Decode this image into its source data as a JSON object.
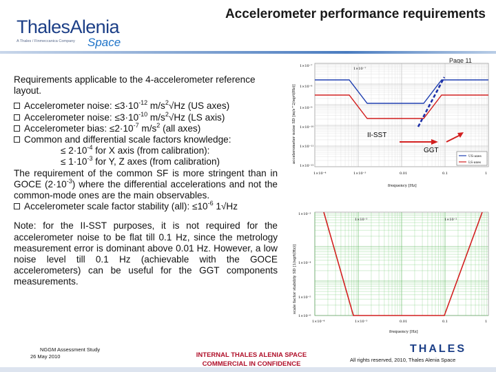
{
  "header": {
    "logo_brand": "ThalesAlenia",
    "logo_tagline": "A Thales / Finmeccanica Company",
    "logo_space": "Space",
    "title": "Accelerometer performance requirements",
    "page": "Page 11"
  },
  "body": {
    "intro": "Requirements applicable to the 4-accelerometer reference layout.",
    "b1_pre": "Accelerometer noise: ≤3·10",
    "b1_exp": "-12",
    "b1_mid": " m/s",
    "b1_exp2": "2",
    "b1_post": "√Hz (US axes)",
    "b2_pre": "Accelerometer noise: ≤3·10",
    "b2_exp": "-10",
    "b2_mid": " m/s",
    "b2_exp2": "2",
    "b2_post": "√Hz (LS axis)",
    "b3_pre": "Accelerometer bias: ≤2·10",
    "b3_exp": "-7",
    "b3_mid": " m/s",
    "b3_exp2": "2",
    "b3_post": "  (all axes)",
    "b4": "Common and differential scale factors knowledge:",
    "sub1_pre": "≤ 2·10",
    "sub1_exp": "-4",
    "sub1_post": " for X axis (from calibration):",
    "sub2_pre": "≤ 1·10",
    "sub2_exp": "-3",
    "sub2_post": " for Y, Z axes (from calibration)",
    "para_pre": "The requirement of the common SF is more stringent than in GOCE (2·10",
    "para_exp": "-3",
    "para_post": ") where the differential accelerations and not the common-mode ones are the main observables.",
    "b5_pre": "Accelerometer scale factor stability (all): ≤10",
    "b5_exp": "-6",
    "b5_post": " 1√Hz",
    "note": "Note: for the II-SST purposes, it is not required for the accelerometer noise to be flat till 0.1 Hz, since the metrology measurement error is dominant above 0.01 Hz. However, a low noise level till 0.1 Hz (achievable with the GOCE accelerometers) can be useful for the GGT components measurements."
  },
  "chart1": {
    "ylabel": "accelerometer noise SD [m/s^2/sqrt(Hz)]",
    "xlabel": "frequency [Hz]",
    "yticks": [
      "1×10⁻⁷",
      "1×10⁻⁸",
      "1×10⁻⁹",
      "1×10⁻¹⁰",
      "1×10⁻¹¹",
      "1×10⁻¹²"
    ],
    "xticks": [
      "1×10⁻⁴",
      "1×10⁻³",
      "0.01",
      "0.1",
      "1"
    ],
    "inner_top_label": "1×10⁻⁷",
    "legend": [
      "US-axes",
      "LS-axes"
    ],
    "annot_sst": "II-SST",
    "annot_ggt": "GGT",
    "colors": {
      "us": "#1f3fb0",
      "ls": "#d21f1f",
      "annot": "#d21f1f",
      "dashed": "#1c2fa8"
    }
  },
  "chart2": {
    "ylabel": "scale factor stability SD [1/sqrt(Hz)]",
    "xlabel": "frequency [Hz]",
    "yticks": [
      "1×10⁻³",
      "1×10⁻⁴",
      "1×10⁻⁵",
      "1×10⁻⁶"
    ],
    "xticks": [
      "1×10⁻⁴",
      "1×10⁻³",
      "0.01",
      "0.1",
      "1"
    ],
    "top_labels": [
      "1×10⁻³",
      "1×10⁻²"
    ],
    "colors": {
      "curve": "#d21f1f",
      "grid": "#7fcf7f"
    }
  },
  "footer": {
    "study": "NGGM Assessment Study",
    "date": "26 May 2010",
    "conf_line1": "INTERNAL THALES ALENIA SPACE",
    "conf_line2": "COMMERCIAL IN CONFIDENCE",
    "thales": "THALES",
    "rights": "All rights reserved, 2010, Thales Alenia Space"
  }
}
